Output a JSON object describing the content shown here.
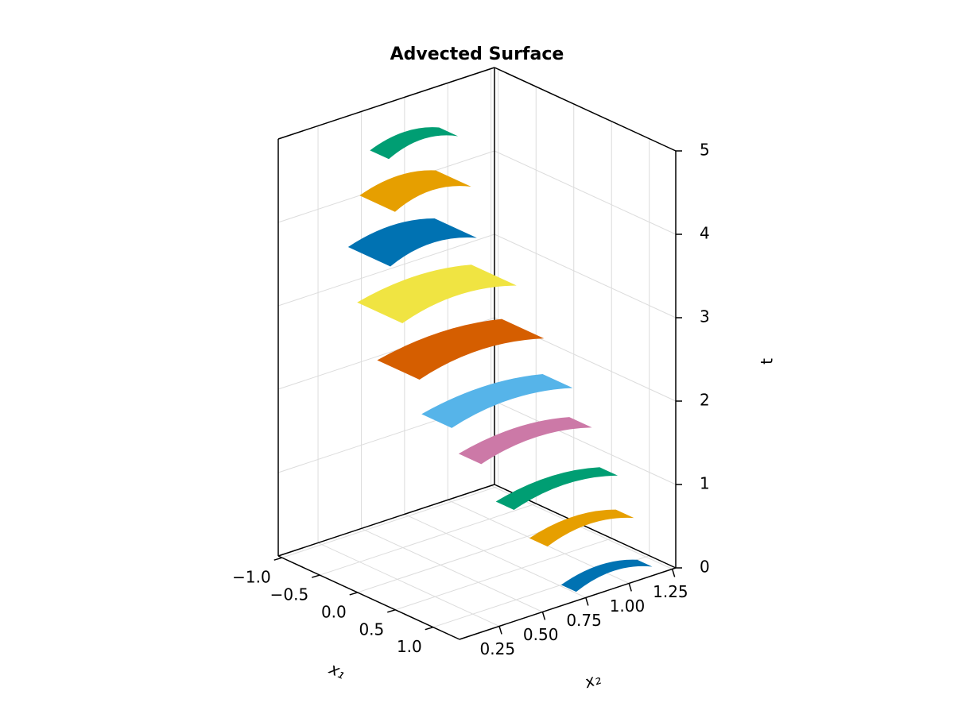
{
  "chart_data": {
    "type": "surface3d",
    "title": "Advected Surface",
    "xlabel": "x₁",
    "ylabel": "x₂",
    "zlabel": "t",
    "xlim": [
      -1.05,
      1.35
    ],
    "ylim": [
      0.02,
      1.27
    ],
    "zlim": [
      0,
      5
    ],
    "xticks": [
      {
        "value": -1.0,
        "label": "−1.0"
      },
      {
        "value": -0.5,
        "label": "−0.5"
      },
      {
        "value": 0.0,
        "label": "0.0"
      },
      0.5,
      {
        "value": 1.0,
        "label": "1.0"
      }
    ],
    "yticks": [
      0.25,
      {
        "value": 0.5,
        "label": "0.50"
      },
      0.75,
      {
        "value": 1.0,
        "label": "1.00"
      },
      1.25
    ],
    "zticks": [
      0,
      1,
      2,
      3,
      4,
      5
    ],
    "grid": true,
    "series": [
      {
        "color": "#0072b2",
        "t": 0,
        "x1_range": [
          1.0,
          1.2
        ],
        "x2_range": [
          0.76,
          1.2
        ]
      },
      {
        "color": "#e69f00",
        "t": 0.5,
        "x1_range": [
          0.74,
          0.98
        ],
        "x2_range": [
          0.69,
          1.19
        ]
      },
      {
        "color": "#009e73",
        "t": 1,
        "x1_range": [
          0.64,
          0.88
        ],
        "x2_range": [
          0.54,
          1.14
        ]
      },
      {
        "color": "#cc79a7",
        "t": 1.5,
        "x1_range": [
          0.33,
          0.63
        ],
        "x2_range": [
          0.46,
          1.1
        ]
      },
      {
        "color": "#56b4e9",
        "t": 2,
        "x1_range": [
          0.16,
          0.56
        ],
        "x2_range": [
          0.32,
          1.02
        ]
      },
      {
        "color": "#d55e00",
        "t": 2.5,
        "x1_range": [
          -0.29,
          0.27
        ],
        "x2_range": [
          0.26,
          0.98
        ]
      },
      {
        "color": "#f0e442",
        "t": 3,
        "x1_range": [
          -0.67,
          -0.07
        ],
        "x2_range": [
          0.31,
          0.97
        ]
      },
      {
        "color": "#0072b2",
        "t": 3.5,
        "x1_range": [
          -0.95,
          -0.39
        ],
        "x2_range": [
          0.38,
          0.88
        ]
      },
      {
        "color": "#e69f00",
        "t": 4,
        "x1_range": [
          -1.05,
          -0.58
        ],
        "x2_range": [
          0.49,
          0.93
        ]
      },
      {
        "color": "#009e73",
        "t": 4.5,
        "x1_range": [
          -1.05,
          -0.8
        ],
        "x2_range": [
          0.55,
          0.95
        ]
      }
    ]
  }
}
